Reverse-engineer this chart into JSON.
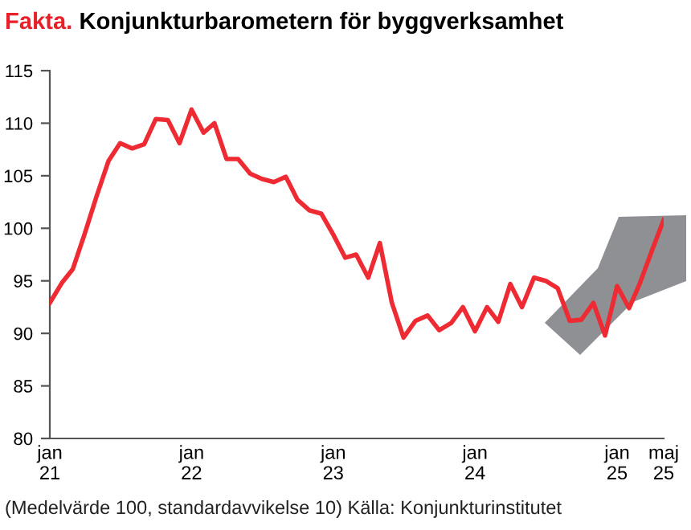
{
  "chart_data": {
    "type": "line",
    "title": "Fakta. Konjunkturbarometern för byggverksamhet",
    "x": [
      "2021-01",
      "2021-02",
      "2021-03",
      "2021-04",
      "2021-05",
      "2021-06",
      "2021-07",
      "2021-08",
      "2021-09",
      "2021-10",
      "2021-11",
      "2021-12",
      "2022-01",
      "2022-02",
      "2022-03",
      "2022-04",
      "2022-05",
      "2022-06",
      "2022-07",
      "2022-08",
      "2022-09",
      "2022-10",
      "2022-11",
      "2022-12",
      "2023-01",
      "2023-02",
      "2023-03",
      "2023-04",
      "2023-05",
      "2023-06",
      "2023-07",
      "2023-08",
      "2023-09",
      "2023-10",
      "2023-11",
      "2023-12",
      "2024-01",
      "2024-02",
      "2024-03",
      "2024-04",
      "2024-05",
      "2024-06",
      "2024-07",
      "2024-08",
      "2024-09",
      "2024-10",
      "2024-11",
      "2024-12",
      "2025-01",
      "2025-02",
      "2025-03",
      "2025-04",
      "2025-05"
    ],
    "series": [
      {
        "color": "#ee2a33",
        "values": [
          92.9,
          94.8,
          96.1,
          99.5,
          103,
          106.4,
          108.1,
          107.6,
          108,
          110.4,
          110.3,
          108.1,
          111.3,
          109.1,
          110,
          106.6,
          106.6,
          105.2,
          104.7,
          104.4,
          104.9,
          102.7,
          101.7,
          101.4,
          99.4,
          97.2,
          97.5,
          95.3,
          98.6,
          92.9,
          89.6,
          91.2,
          91.7,
          90.3,
          91,
          92.5,
          90.2,
          92.5,
          91.1,
          94.7,
          92.5,
          95.3,
          95,
          94.3,
          91.2,
          91.3,
          92.9,
          89.8,
          94.5,
          92.4,
          94.8,
          97.9,
          100.8
        ]
      }
    ],
    "xlim": [
      "2021-01",
      "2025-05"
    ],
    "xticks": [
      {
        "value": "2021-01",
        "label": "jan\n21"
      },
      {
        "value": "2022-01",
        "label": "jan\n22"
      },
      {
        "value": "2023-01",
        "label": "jan\n23"
      },
      {
        "value": "2024-01",
        "label": "jan\n24"
      },
      {
        "value": "2025-01",
        "label": "jan\n25"
      },
      {
        "value": "2025-05",
        "label": "maj\n25"
      }
    ],
    "ylim": [
      80,
      115
    ],
    "yticks": [
      80,
      85,
      90,
      95,
      100,
      105,
      110,
      115
    ],
    "grid": false,
    "marker": "none",
    "line_style": "solid",
    "annotations": [
      "(Medelvärde 100, standardavvikelse 10) Källa: Konjunkturinstitutet"
    ]
  }
}
